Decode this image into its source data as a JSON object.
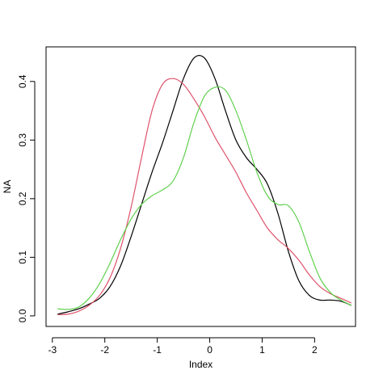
{
  "chart_data": {
    "type": "line",
    "x_label": "Index",
    "y_label": "NA",
    "x": [
      -2.9,
      -2.7,
      -2.5,
      -2.3,
      -2.1,
      -1.9,
      -1.7,
      -1.5,
      -1.3,
      -1.1,
      -0.9,
      -0.7,
      -0.5,
      -0.3,
      -0.1,
      0.1,
      0.3,
      0.5,
      0.7,
      0.9,
      1.1,
      1.3,
      1.5,
      1.7,
      1.9,
      2.1,
      2.3,
      2.5,
      2.7
    ],
    "series": [
      {
        "color": "#000000",
        "values": [
          0.003,
          0.007,
          0.012,
          0.02,
          0.03,
          0.05,
          0.085,
          0.135,
          0.19,
          0.245,
          0.295,
          0.35,
          0.405,
          0.44,
          0.44,
          0.405,
          0.35,
          0.3,
          0.27,
          0.25,
          0.225,
          0.175,
          0.11,
          0.06,
          0.035,
          0.027,
          0.027,
          0.025,
          0.018
        ]
      },
      {
        "color": "#DF536B",
        "values": [
          0.002,
          0.003,
          0.008,
          0.018,
          0.035,
          0.065,
          0.115,
          0.185,
          0.27,
          0.35,
          0.395,
          0.405,
          0.395,
          0.37,
          0.34,
          0.305,
          0.275,
          0.245,
          0.21,
          0.18,
          0.15,
          0.13,
          0.115,
          0.095,
          0.07,
          0.05,
          0.038,
          0.03,
          0.022
        ]
      },
      {
        "color": "#61D04F",
        "values": [
          0.012,
          0.011,
          0.015,
          0.03,
          0.055,
          0.09,
          0.13,
          0.165,
          0.19,
          0.205,
          0.215,
          0.23,
          0.27,
          0.33,
          0.375,
          0.39,
          0.385,
          0.35,
          0.3,
          0.245,
          0.205,
          0.19,
          0.188,
          0.16,
          0.11,
          0.065,
          0.04,
          0.027,
          0.018
        ]
      }
    ],
    "xlim": [
      -3.12,
      2.78
    ],
    "ylim": [
      -0.018,
      0.459
    ],
    "xticks": [
      -3,
      -2,
      -1,
      0,
      1,
      2
    ],
    "yticks": [
      {
        "value": 0,
        "label": "0.0"
      },
      0.1,
      0.2,
      0.3,
      0.4
    ]
  }
}
